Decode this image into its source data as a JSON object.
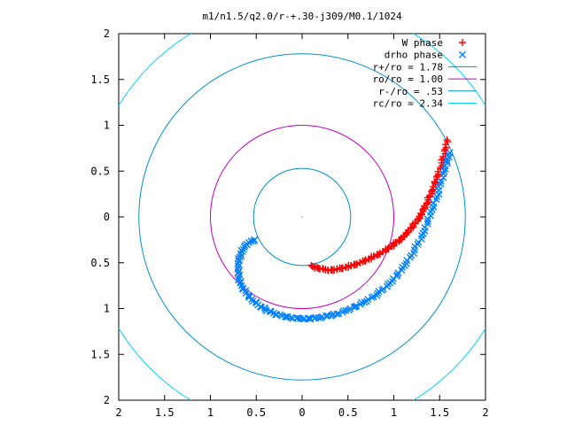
{
  "chart_data": {
    "type": "scatter",
    "title": "m1/n1.5/q2.0/r-+.30-j309/M0.1/1024",
    "xlim": [
      -2,
      2
    ],
    "ylim": [
      -2,
      2
    ],
    "x_tick_labels": [
      "2",
      "1.5",
      "1",
      "0.5",
      "0",
      "0.5",
      "1",
      "1.5",
      "2"
    ],
    "y_tick_labels": [
      "2",
      "1.5",
      "1",
      "0.5",
      "0",
      "0.5",
      "1",
      "1.5",
      "2"
    ],
    "legend_position": "top-right",
    "grid": false,
    "series": [
      {
        "name": "W phase",
        "kind": "points",
        "marker": "plus",
        "color": "#ff0000",
        "points": [
          [
            0.1,
            -0.53
          ],
          [
            0.14,
            -0.55
          ],
          [
            0.18,
            -0.56
          ],
          [
            0.23,
            -0.57
          ],
          [
            0.28,
            -0.58
          ],
          [
            0.33,
            -0.58
          ],
          [
            0.38,
            -0.57
          ],
          [
            0.43,
            -0.56
          ],
          [
            0.48,
            -0.55
          ],
          [
            0.53,
            -0.53
          ],
          [
            0.58,
            -0.52
          ],
          [
            0.63,
            -0.5
          ],
          [
            0.68,
            -0.48
          ],
          [
            0.73,
            -0.46
          ],
          [
            0.78,
            -0.43
          ],
          [
            0.83,
            -0.41
          ],
          [
            0.88,
            -0.38
          ],
          [
            0.93,
            -0.35
          ],
          [
            0.98,
            -0.32
          ],
          [
            1.02,
            -0.28
          ],
          [
            1.07,
            -0.25
          ],
          [
            1.11,
            -0.21
          ],
          [
            1.15,
            -0.17
          ],
          [
            1.19,
            -0.12
          ],
          [
            1.23,
            -0.07
          ],
          [
            1.27,
            -0.02
          ],
          [
            1.3,
            0.03
          ],
          [
            1.33,
            0.09
          ],
          [
            1.36,
            0.15
          ],
          [
            1.39,
            0.22
          ],
          [
            1.42,
            0.29
          ],
          [
            1.45,
            0.37
          ],
          [
            1.48,
            0.45
          ],
          [
            1.51,
            0.54
          ],
          [
            1.54,
            0.64
          ],
          [
            1.56,
            0.74
          ],
          [
            1.58,
            0.84
          ]
        ]
      },
      {
        "name": "drho phase",
        "kind": "points",
        "marker": "cross",
        "color": "#0080ff",
        "points": [
          [
            -0.52,
            -0.25
          ],
          [
            -0.58,
            -0.28
          ],
          [
            -0.63,
            -0.33
          ],
          [
            -0.67,
            -0.4
          ],
          [
            -0.69,
            -0.48
          ],
          [
            -0.7,
            -0.57
          ],
          [
            -0.69,
            -0.66
          ],
          [
            -0.66,
            -0.75
          ],
          [
            -0.61,
            -0.83
          ],
          [
            -0.55,
            -0.9
          ],
          [
            -0.48,
            -0.96
          ],
          [
            -0.4,
            -1.01
          ],
          [
            -0.31,
            -1.05
          ],
          [
            -0.22,
            -1.08
          ],
          [
            -0.12,
            -1.1
          ],
          [
            -0.02,
            -1.11
          ],
          [
            0.08,
            -1.11
          ],
          [
            0.18,
            -1.1
          ],
          [
            0.28,
            -1.08
          ],
          [
            0.38,
            -1.06
          ],
          [
            0.48,
            -1.02
          ],
          [
            0.58,
            -0.98
          ],
          [
            0.68,
            -0.93
          ],
          [
            0.78,
            -0.87
          ],
          [
            0.87,
            -0.8
          ],
          [
            0.96,
            -0.72
          ],
          [
            1.04,
            -0.63
          ],
          [
            1.12,
            -0.53
          ],
          [
            1.19,
            -0.42
          ],
          [
            1.26,
            -0.3
          ],
          [
            1.32,
            -0.18
          ],
          [
            1.37,
            -0.05
          ],
          [
            1.42,
            0.08
          ],
          [
            1.47,
            0.22
          ],
          [
            1.51,
            0.36
          ],
          [
            1.55,
            0.5
          ],
          [
            1.58,
            0.61
          ],
          [
            1.61,
            0.7
          ]
        ]
      },
      {
        "name": "r+/ro = 1.78",
        "kind": "circle",
        "radius": 1.78,
        "color": "#0090d0"
      },
      {
        "name": "ro/ro = 1.00",
        "kind": "circle",
        "radius": 1.0,
        "color": "#c000c0"
      },
      {
        "name": "r-/ro = .53",
        "kind": "circle",
        "radius": 0.53,
        "color": "#0090d0"
      },
      {
        "name": "rc/ro = 2.34",
        "kind": "circle",
        "radius": 2.34,
        "color": "#00d0ff"
      }
    ]
  }
}
